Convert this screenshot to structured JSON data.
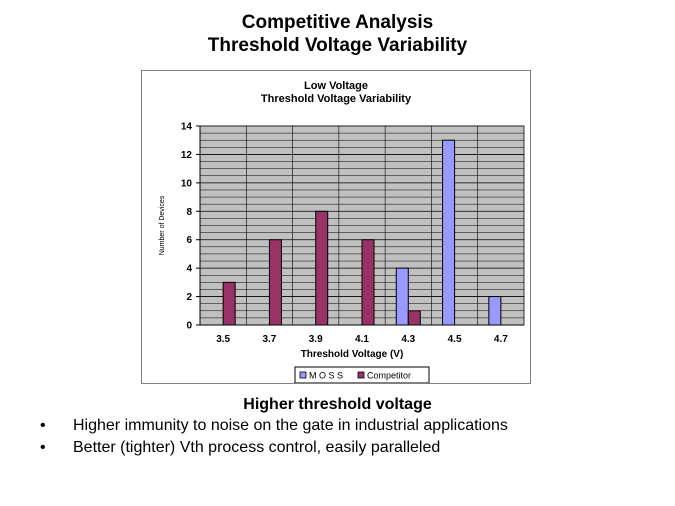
{
  "slide": {
    "title_line1": "Competitive Analysis",
    "title_line2": "Threshold Voltage Variability",
    "subheading": "Higher threshold voltage",
    "bullets": [
      "Higher immunity to noise on the gate in industrial applications",
      "Better (tighter) Vth process control, easily paralleled"
    ],
    "bullet_symbol": "•"
  },
  "chart_data": {
    "type": "bar",
    "title": [
      "Low Voltage",
      "Threshold Voltage Variability"
    ],
    "xlabel": "Threshold Voltage (V)",
    "ylabel": "Number of Devices",
    "categories": [
      "3.5",
      "3.7",
      "3.9",
      "4.1",
      "4.3",
      "4.5",
      "4.7"
    ],
    "series": [
      {
        "name": "MOSS",
        "values": [
          0,
          0,
          0,
          0,
          4,
          13,
          2
        ],
        "color": "#9999ff"
      },
      {
        "name": "Competitor",
        "values": [
          3,
          6,
          8,
          6,
          1,
          0,
          0
        ],
        "color": "#993366"
      }
    ],
    "ylim": [
      0,
      14
    ],
    "yticks": [
      0,
      2,
      4,
      6,
      8,
      10,
      12,
      14
    ],
    "grid": true,
    "plot_background": "#c0c0c0",
    "legend_position": "bottom"
  }
}
